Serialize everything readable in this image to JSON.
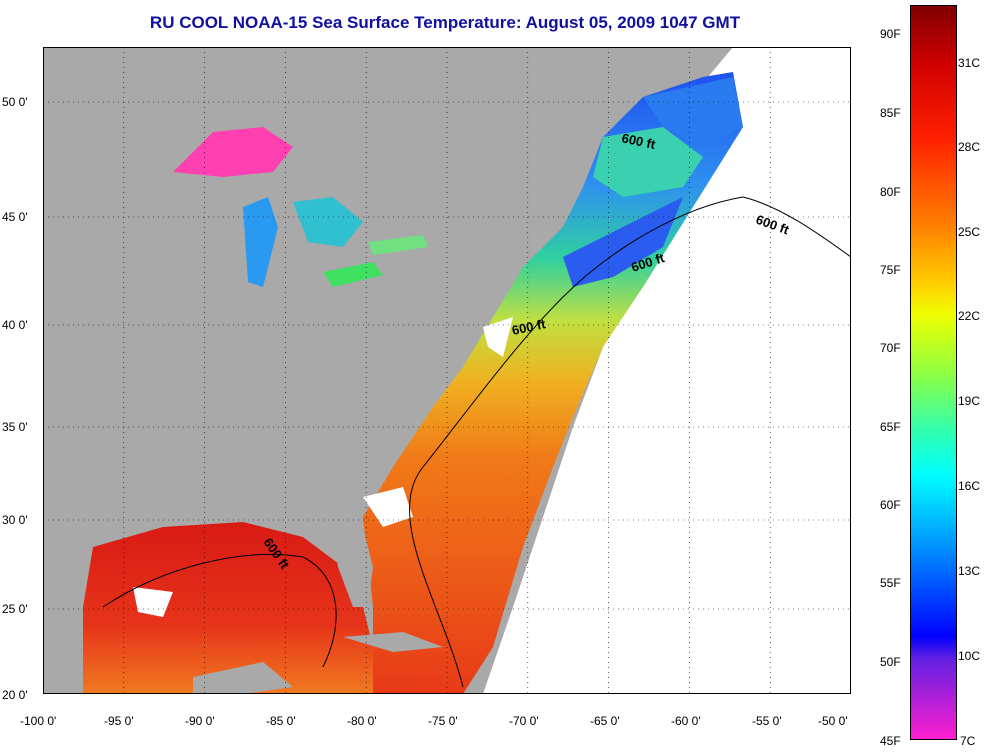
{
  "title": "RU COOL  NOAA-15  Sea Surface Temperature:  August 05, 2009 1047 GMT",
  "map": {
    "x_ticks": [
      "-100 0'",
      "-95 0'",
      "-90 0'",
      "-85 0'",
      "-80 0'",
      "-75 0'",
      "-70 0'",
      "-65 0'",
      "-60 0'",
      "-55 0'",
      "-50 0'"
    ],
    "y_ticks": [
      "50 0'",
      "45 0'",
      "40 0'",
      "35 0'",
      "30 0'",
      "25 0'",
      "20 0'"
    ],
    "contour_labels": [
      "600 ft",
      "600 ft",
      "600 ft",
      "600 ft",
      "600 ft"
    ],
    "colors": {
      "land": "#a9a9a9",
      "no_data": "#ffffff",
      "gulf": "#e8251a",
      "atlantic_warm": "#f08020"
    }
  },
  "colorbar": {
    "fahrenheit": [
      "90F",
      "85F",
      "80F",
      "75F",
      "70F",
      "65F",
      "60F",
      "55F",
      "50F",
      "45F"
    ],
    "celsius": [
      "31C",
      "28C",
      "25C",
      "22C",
      "19C",
      "16C",
      "13C",
      "10C",
      "7C"
    ]
  }
}
